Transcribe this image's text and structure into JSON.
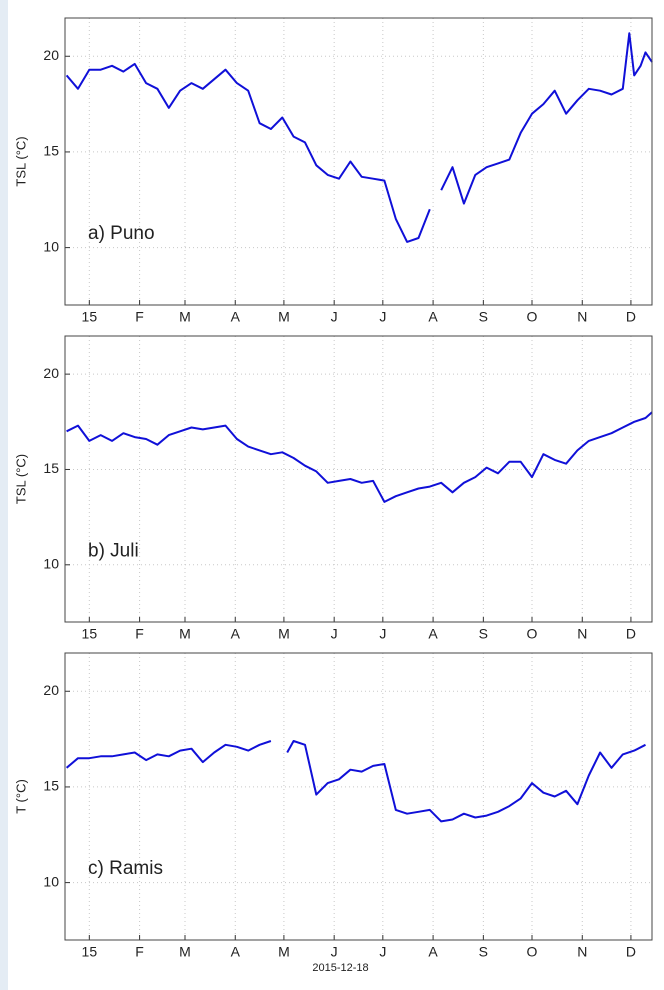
{
  "chart_data": [
    {
      "type": "line",
      "ylabel": "TSL  (°C)",
      "annotation": "a) Puno",
      "color": "#1010d8",
      "grid": true,
      "xlim": [
        -15,
        347
      ],
      "ylim": [
        7,
        22
      ],
      "yticks": [
        10,
        15,
        20
      ],
      "xticks": [
        {
          "value": 0,
          "label": "15"
        },
        {
          "value": 31,
          "label": "F"
        },
        {
          "value": 59,
          "label": "M"
        },
        {
          "value": 90,
          "label": "A"
        },
        {
          "value": 120,
          "label": "M"
        },
        {
          "value": 151,
          "label": "J"
        },
        {
          "value": 181,
          "label": "J"
        },
        {
          "value": 212,
          "label": "A"
        },
        {
          "value": 243,
          "label": "S"
        },
        {
          "value": 273,
          "label": "O"
        },
        {
          "value": 304,
          "label": "N"
        },
        {
          "value": 334,
          "label": "D"
        }
      ],
      "x": [
        -14,
        -7,
        0,
        7,
        14,
        21,
        28,
        35,
        42,
        49,
        56,
        63,
        70,
        77,
        84,
        91,
        98,
        105,
        112,
        119,
        126,
        133,
        140,
        147,
        154,
        161,
        168,
        175,
        182,
        189,
        196,
        203,
        210,
        214,
        217,
        224,
        231,
        238,
        245,
        252,
        259,
        266,
        273,
        280,
        287,
        294,
        301,
        308,
        315,
        322,
        329,
        333,
        336,
        340,
        343,
        347
      ],
      "values": [
        19,
        18.3,
        19.3,
        19.3,
        19.5,
        19.2,
        19.6,
        18.6,
        18.3,
        17.3,
        18.2,
        18.6,
        18.3,
        18.8,
        19.3,
        18.6,
        18.2,
        16.5,
        16.2,
        16.8,
        15.8,
        15.5,
        14.3,
        13.8,
        13.6,
        14.5,
        13.7,
        13.6,
        13.5,
        11.5,
        10.3,
        10.5,
        12,
        null,
        13,
        14.2,
        12.3,
        13.8,
        14.2,
        14.4,
        14.6,
        16,
        17,
        17.5,
        18.2,
        17,
        17.7,
        18.3,
        18.2,
        18,
        18.3,
        21.2,
        19,
        19.5,
        20.2,
        19.7
      ]
    },
    {
      "type": "line",
      "ylabel": "TSL  (°C)",
      "annotation": "b) Juli",
      "color": "#1010d8",
      "grid": true,
      "xlim": [
        -15,
        347
      ],
      "ylim": [
        7,
        22
      ],
      "yticks": [
        10,
        15,
        20
      ],
      "xticks": [
        {
          "value": 0,
          "label": "15"
        },
        {
          "value": 31,
          "label": "F"
        },
        {
          "value": 59,
          "label": "M"
        },
        {
          "value": 90,
          "label": "A"
        },
        {
          "value": 120,
          "label": "M"
        },
        {
          "value": 151,
          "label": "J"
        },
        {
          "value": 181,
          "label": "J"
        },
        {
          "value": 212,
          "label": "A"
        },
        {
          "value": 243,
          "label": "S"
        },
        {
          "value": 273,
          "label": "O"
        },
        {
          "value": 304,
          "label": "N"
        },
        {
          "value": 334,
          "label": "D"
        }
      ],
      "x": [
        -14,
        -7,
        0,
        7,
        14,
        21,
        28,
        35,
        42,
        49,
        56,
        63,
        70,
        77,
        84,
        91,
        98,
        105,
        112,
        119,
        126,
        133,
        140,
        147,
        154,
        161,
        168,
        175,
        182,
        189,
        196,
        203,
        210,
        217,
        224,
        231,
        238,
        245,
        252,
        259,
        266,
        273,
        280,
        287,
        294,
        301,
        308,
        315,
        322,
        329,
        336,
        343,
        347
      ],
      "values": [
        17,
        17.3,
        16.5,
        16.8,
        16.5,
        16.9,
        16.7,
        16.6,
        16.3,
        16.8,
        17,
        17.2,
        17.1,
        17.2,
        17.3,
        16.6,
        16.2,
        16,
        15.8,
        15.9,
        15.6,
        15.2,
        14.9,
        14.3,
        14.4,
        14.5,
        14.3,
        14.4,
        13.3,
        13.6,
        13.8,
        14,
        14.1,
        14.3,
        13.8,
        14.3,
        14.6,
        15.1,
        14.8,
        15.4,
        15.4,
        14.6,
        15.8,
        15.5,
        15.3,
        16,
        16.5,
        16.7,
        16.9,
        17.2,
        17.5,
        17.7,
        18
      ]
    },
    {
      "type": "line",
      "ylabel": "T  (°C)",
      "annotation": "c) Ramis",
      "xlabel": "2015-12-18",
      "color": "#1010d8",
      "grid": true,
      "xlim": [
        -15,
        347
      ],
      "ylim": [
        7,
        22
      ],
      "yticks": [
        10,
        15,
        20
      ],
      "xticks": [
        {
          "value": 0,
          "label": "15"
        },
        {
          "value": 31,
          "label": "F"
        },
        {
          "value": 59,
          "label": "M"
        },
        {
          "value": 90,
          "label": "A"
        },
        {
          "value": 120,
          "label": "M"
        },
        {
          "value": 151,
          "label": "J"
        },
        {
          "value": 181,
          "label": "J"
        },
        {
          "value": 212,
          "label": "A"
        },
        {
          "value": 243,
          "label": "S"
        },
        {
          "value": 273,
          "label": "O"
        },
        {
          "value": 304,
          "label": "N"
        },
        {
          "value": 334,
          "label": "D"
        }
      ],
      "x": [
        -14,
        -7,
        0,
        7,
        14,
        21,
        28,
        35,
        42,
        49,
        56,
        63,
        70,
        77,
        84,
        91,
        98,
        105,
        112,
        119,
        122,
        126,
        133,
        140,
        147,
        154,
        161,
        168,
        175,
        182,
        189,
        196,
        203,
        210,
        217,
        224,
        231,
        238,
        245,
        252,
        259,
        266,
        273,
        280,
        287,
        294,
        301,
        308,
        315,
        322,
        329,
        336,
        343
      ],
      "values": [
        16,
        16.5,
        16.5,
        16.6,
        16.6,
        16.7,
        16.8,
        16.4,
        16.7,
        16.6,
        16.9,
        17,
        16.3,
        16.8,
        17.2,
        17.1,
        16.9,
        17.2,
        17.4,
        null,
        16.8,
        17.4,
        17.2,
        14.6,
        15.2,
        15.4,
        15.9,
        15.8,
        16.1,
        16.2,
        13.8,
        13.6,
        13.7,
        13.8,
        13.2,
        13.3,
        13.6,
        13.4,
        13.5,
        13.7,
        14,
        14.4,
        15.2,
        14.7,
        14.5,
        14.8,
        14.1,
        15.6,
        16.8,
        16,
        16.7,
        16.9,
        17.2
      ]
    }
  ]
}
